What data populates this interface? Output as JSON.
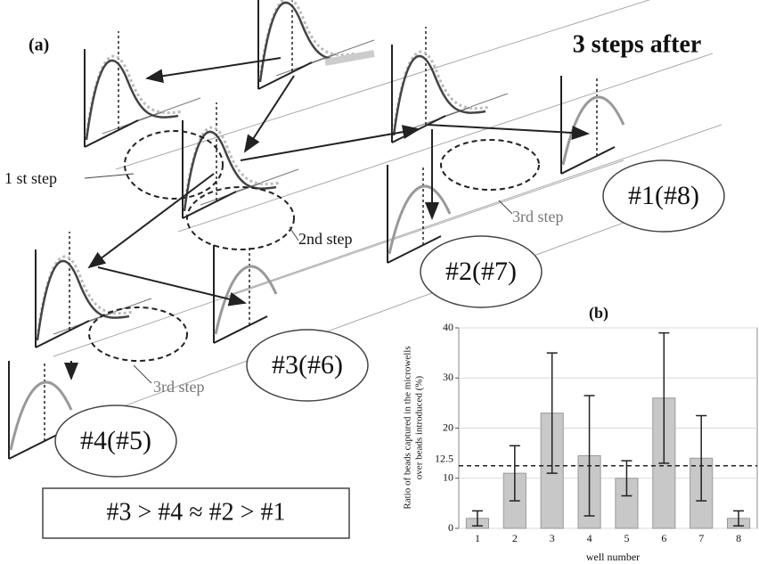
{
  "panel_a": {
    "label": "(a)",
    "heading": "3 steps after",
    "step_labels": [
      "1 st step",
      "2nd step",
      "3rd step",
      "3rd step"
    ],
    "wells": [
      "#1(#8)",
      "#2(#7)",
      "#3(#6)",
      "#4(#5)"
    ],
    "ranking": "#3 > #4 ≈ #2 > #1"
  },
  "chart_data": {
    "type": "bar",
    "title": "(b)",
    "y_label": [
      "Ratio of beads captured in the microwells",
      "over beads introduced (%)"
    ],
    "x_label": "well number",
    "categories": [
      "1",
      "2",
      "3",
      "4",
      "5",
      "6",
      "7",
      "8"
    ],
    "values": [
      2,
      11,
      23,
      14.5,
      10,
      26,
      14,
      2
    ],
    "errors": [
      1.5,
      5.5,
      12,
      12,
      3.5,
      13,
      8.5,
      1.5
    ],
    "color": "#c8c8c8",
    "ylim": [
      0,
      40
    ],
    "yticks": [
      0,
      10,
      20,
      30,
      40
    ],
    "reference_line": 12.5,
    "grid": true
  }
}
